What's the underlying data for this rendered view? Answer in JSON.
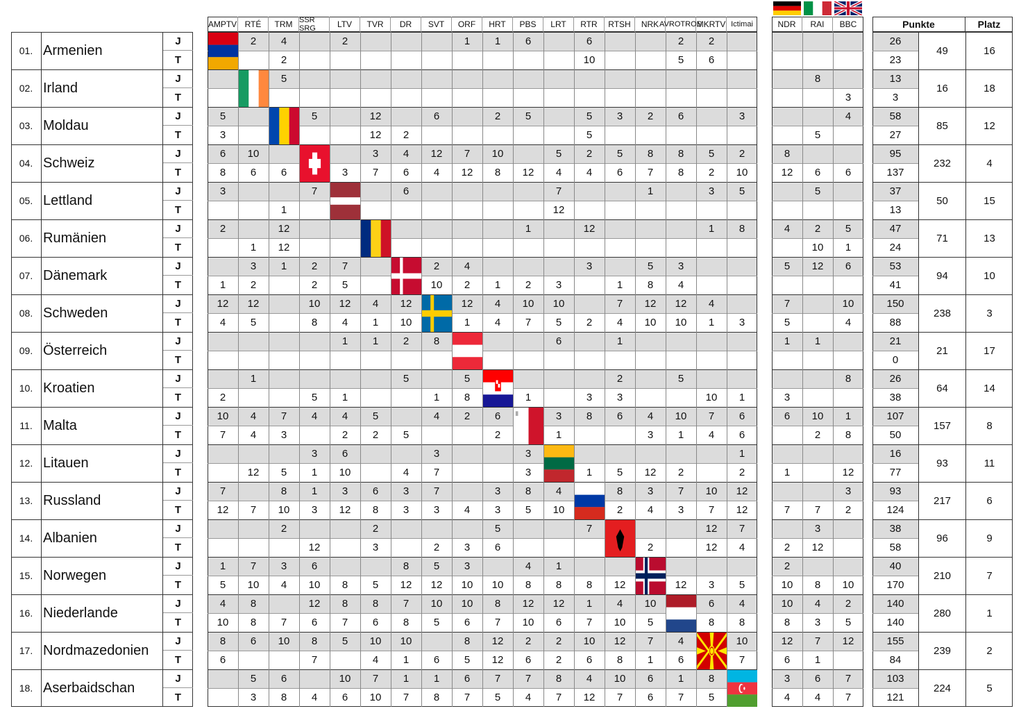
{
  "broadcasters": [
    "AMPTV",
    "RTÉ",
    "TRM",
    "SSR SRG",
    "LTV",
    "TVR",
    "DR",
    "SVT",
    "ORF",
    "HRT",
    "PBS",
    "LRT",
    "RTR",
    "RTSH",
    "NRK",
    "AVROTROS",
    "MKRTV",
    "Ictimai"
  ],
  "special_broadcasters": [
    "NDR",
    "RAI",
    "BBC"
  ],
  "special_flags": [
    "germany-flag-icon",
    "italy-flag-icon",
    "uk-flag-icon"
  ],
  "summary_headers": {
    "punkte": "Punkte",
    "platz": "Platz"
  },
  "colors": {
    "grey_row": "#dcdcdc",
    "border": "#333333"
  },
  "countries": [
    {
      "num": "01.",
      "name": "Armenien",
      "flag": "armenia-flag-icon",
      "j_label": "J",
      "t_label": "T",
      "j": [
        "",
        "2",
        "4",
        "",
        "2",
        "",
        "",
        "",
        "1",
        "1",
        "6",
        "",
        "6",
        "",
        "",
        "2",
        "2",
        ""
      ],
      "t": [
        "",
        "",
        "2",
        "",
        "",
        "",
        "",
        "",
        "",
        "",
        "",
        "",
        "10",
        "",
        "",
        "5",
        "6",
        ""
      ],
      "j_special": [
        "",
        "",
        ""
      ],
      "t_special": [
        "",
        "",
        ""
      ],
      "j_sum": "26",
      "t_sum": "23",
      "punkte": "49",
      "platz": "16"
    },
    {
      "num": "02.",
      "name": "Irland",
      "flag": "ireland-flag-icon",
      "j_label": "J",
      "t_label": "T",
      "j": [
        "",
        "",
        "5",
        "",
        "",
        "",
        "",
        "",
        "",
        "",
        "",
        "",
        "",
        "",
        "",
        "",
        "",
        ""
      ],
      "t": [
        "",
        "",
        "",
        "",
        "",
        "",
        "",
        "",
        "",
        "",
        "",
        "",
        "",
        "",
        "",
        "",
        "",
        ""
      ],
      "j_special": [
        "",
        "8",
        ""
      ],
      "t_special": [
        "",
        "",
        "3"
      ],
      "j_sum": "13",
      "t_sum": "3",
      "punkte": "16",
      "platz": "18"
    },
    {
      "num": "03.",
      "name": "Moldau",
      "flag": "moldova-flag-icon",
      "j_label": "J",
      "t_label": "T",
      "j": [
        "5",
        "",
        "",
        "5",
        "",
        "12",
        "",
        "6",
        "",
        "2",
        "5",
        "",
        "5",
        "3",
        "2",
        "6",
        "",
        "3"
      ],
      "t": [
        "3",
        "",
        "",
        "",
        "",
        "12",
        "2",
        "",
        "",
        "",
        "",
        "",
        "5",
        "",
        "",
        "",
        "",
        ""
      ],
      "j_special": [
        "",
        "",
        "4"
      ],
      "t_special": [
        "",
        "5",
        ""
      ],
      "j_sum": "58",
      "t_sum": "27",
      "punkte": "85",
      "platz": "12"
    },
    {
      "num": "04.",
      "name": "Schweiz",
      "flag": "switzerland-flag-icon",
      "j_label": "J",
      "t_label": "T",
      "j": [
        "6",
        "10",
        "",
        "",
        "",
        "3",
        "4",
        "12",
        "7",
        "10",
        "",
        "5",
        "2",
        "5",
        "8",
        "8",
        "5",
        "2"
      ],
      "t": [
        "8",
        "6",
        "6",
        "",
        "3",
        "7",
        "6",
        "4",
        "12",
        "8",
        "12",
        "4",
        "4",
        "6",
        "7",
        "8",
        "2",
        "10"
      ],
      "j_special": [
        "8",
        "",
        ""
      ],
      "t_special": [
        "12",
        "6",
        "6"
      ],
      "j_sum": "95",
      "t_sum": "137",
      "punkte": "232",
      "platz": "4"
    },
    {
      "num": "05.",
      "name": "Lettland",
      "flag": "latvia-flag-icon",
      "j_label": "J",
      "t_label": "T",
      "j": [
        "3",
        "",
        "",
        "7",
        "",
        "",
        "6",
        "",
        "",
        "",
        "",
        "7",
        "",
        "",
        "1",
        "",
        "3",
        "5"
      ],
      "t": [
        "",
        "",
        "1",
        "",
        "",
        "",
        "",
        "",
        "",
        "",
        "",
        "12",
        "",
        "",
        "",
        "",
        "",
        ""
      ],
      "j_special": [
        "",
        "5",
        ""
      ],
      "t_special": [
        "",
        "",
        ""
      ],
      "j_sum": "37",
      "t_sum": "13",
      "punkte": "50",
      "platz": "15"
    },
    {
      "num": "06.",
      "name": "Rumänien",
      "flag": "romania-flag-icon",
      "j_label": "J",
      "t_label": "T",
      "j": [
        "2",
        "",
        "12",
        "",
        "",
        "",
        "",
        "",
        "",
        "",
        "1",
        "",
        "12",
        "",
        "",
        "",
        "1",
        "8"
      ],
      "t": [
        "",
        "1",
        "12",
        "",
        "",
        "",
        "",
        "",
        "",
        "",
        "",
        "",
        "",
        "",
        "",
        "",
        "",
        ""
      ],
      "j_special": [
        "4",
        "2",
        "5"
      ],
      "t_special": [
        "",
        "10",
        "1"
      ],
      "j_sum": "47",
      "t_sum": "24",
      "punkte": "71",
      "platz": "13"
    },
    {
      "num": "07.",
      "name": "Dänemark",
      "flag": "denmark-flag-icon",
      "j_label": "J",
      "t_label": "T",
      "j": [
        "",
        "3",
        "1",
        "2",
        "7",
        "",
        "",
        "2",
        "4",
        "",
        "",
        "",
        "3",
        "",
        "5",
        "3",
        "",
        ""
      ],
      "t": [
        "1",
        "2",
        "",
        "2",
        "5",
        "",
        "",
        "10",
        "2",
        "1",
        "2",
        "3",
        "",
        "1",
        "8",
        "4",
        "",
        ""
      ],
      "j_special": [
        "5",
        "12",
        "6"
      ],
      "t_special": [
        "",
        "",
        ""
      ],
      "j_sum": "53",
      "t_sum": "41",
      "punkte": "94",
      "platz": "10"
    },
    {
      "num": "08.",
      "name": "Schweden",
      "flag": "sweden-flag-icon",
      "j_label": "J",
      "t_label": "T",
      "j": [
        "12",
        "12",
        "",
        "10",
        "12",
        "4",
        "12",
        "",
        "12",
        "4",
        "10",
        "10",
        "",
        "7",
        "12",
        "12",
        "4",
        ""
      ],
      "t": [
        "4",
        "5",
        "",
        "8",
        "4",
        "1",
        "10",
        "",
        "1",
        "4",
        "7",
        "5",
        "2",
        "4",
        "10",
        "10",
        "1",
        "3"
      ],
      "j_special": [
        "7",
        "",
        "10"
      ],
      "t_special": [
        "5",
        "",
        "4"
      ],
      "j_sum": "150",
      "t_sum": "88",
      "punkte": "238",
      "platz": "3"
    },
    {
      "num": "09.",
      "name": "Österreich",
      "flag": "austria-flag-icon",
      "j_label": "J",
      "t_label": "T",
      "j": [
        "",
        "",
        "",
        "",
        "1",
        "1",
        "2",
        "8",
        "",
        "",
        "",
        "6",
        "",
        "1",
        "",
        "",
        "",
        ""
      ],
      "t": [
        "",
        "",
        "",
        "",
        "",
        "",
        "",
        "",
        "",
        "",
        "",
        "",
        "",
        "",
        "",
        "",
        "",
        ""
      ],
      "j_special": [
        "1",
        "1",
        ""
      ],
      "t_special": [
        "",
        "",
        ""
      ],
      "j_sum": "21",
      "t_sum": "0",
      "punkte": "21",
      "platz": "17"
    },
    {
      "num": "10.",
      "name": "Kroatien",
      "flag": "croatia-flag-icon",
      "j_label": "J",
      "t_label": "T",
      "j": [
        "",
        "1",
        "",
        "",
        "",
        "",
        "5",
        "",
        "5",
        "",
        "",
        "",
        "",
        "2",
        "",
        "5",
        "",
        ""
      ],
      "t": [
        "2",
        "",
        "",
        "5",
        "1",
        "",
        "",
        "1",
        "8",
        "",
        "1",
        "",
        "3",
        "3",
        "",
        "",
        "10",
        "1"
      ],
      "j_special": [
        "",
        "",
        "8"
      ],
      "t_special": [
        "3",
        "",
        ""
      ],
      "j_sum": "26",
      "t_sum": "38",
      "punkte": "64",
      "platz": "14"
    },
    {
      "num": "11.",
      "name": "Malta",
      "flag": "malta-flag-icon",
      "j_label": "J",
      "t_label": "T",
      "j": [
        "10",
        "4",
        "7",
        "4",
        "4",
        "5",
        "",
        "4",
        "2",
        "6",
        "",
        "3",
        "8",
        "6",
        "4",
        "10",
        "7",
        "6"
      ],
      "t": [
        "7",
        "4",
        "3",
        "",
        "2",
        "2",
        "5",
        "",
        "",
        "2",
        "",
        "1",
        "",
        "",
        "3",
        "1",
        "4",
        "6"
      ],
      "j_special": [
        "6",
        "10",
        "1"
      ],
      "t_special": [
        "",
        "2",
        "8"
      ],
      "j_sum": "107",
      "t_sum": "50",
      "punkte": "157",
      "platz": "8"
    },
    {
      "num": "12.",
      "name": "Litauen",
      "flag": "lithuania-flag-icon",
      "j_label": "J",
      "t_label": "T",
      "j": [
        "",
        "",
        "",
        "3",
        "6",
        "",
        "",
        "3",
        "",
        "",
        "3",
        "",
        "",
        "",
        "",
        "",
        "",
        "1"
      ],
      "t": [
        "",
        "12",
        "5",
        "1",
        "10",
        "",
        "4",
        "7",
        "",
        "",
        "3",
        "",
        "1",
        "5",
        "12",
        "2",
        "",
        "2"
      ],
      "j_special": [
        "",
        "",
        ""
      ],
      "t_special": [
        "1",
        "",
        "12"
      ],
      "j_sum": "16",
      "t_sum": "77",
      "punkte": "93",
      "platz": "11"
    },
    {
      "num": "13.",
      "name": "Russland",
      "flag": "russia-flag-icon",
      "j_label": "J",
      "t_label": "T",
      "j": [
        "7",
        "",
        "8",
        "1",
        "3",
        "6",
        "3",
        "7",
        "",
        "3",
        "8",
        "4",
        "",
        "8",
        "3",
        "7",
        "10",
        "12"
      ],
      "t": [
        "12",
        "7",
        "10",
        "3",
        "12",
        "8",
        "3",
        "3",
        "4",
        "3",
        "5",
        "10",
        "",
        "2",
        "4",
        "3",
        "7",
        "12"
      ],
      "j_special": [
        "",
        "",
        "3"
      ],
      "t_special": [
        "7",
        "7",
        "2"
      ],
      "j_sum": "93",
      "t_sum": "124",
      "punkte": "217",
      "platz": "6"
    },
    {
      "num": "14.",
      "name": "Albanien",
      "flag": "albania-flag-icon",
      "j_label": "J",
      "t_label": "T",
      "j": [
        "",
        "",
        "2",
        "",
        "",
        "2",
        "",
        "",
        "",
        "5",
        "",
        "",
        "7",
        "",
        "",
        "",
        "12",
        "7"
      ],
      "t": [
        "",
        "",
        "",
        "12",
        "",
        "3",
        "",
        "2",
        "3",
        "6",
        "",
        "",
        "",
        "",
        "2",
        "",
        "12",
        "4"
      ],
      "j_special": [
        "",
        "3",
        ""
      ],
      "t_special": [
        "2",
        "12",
        ""
      ],
      "j_sum": "38",
      "t_sum": "58",
      "punkte": "96",
      "platz": "9"
    },
    {
      "num": "15.",
      "name": "Norwegen",
      "flag": "norway-flag-icon",
      "j_label": "J",
      "t_label": "T",
      "j": [
        "1",
        "7",
        "3",
        "6",
        "",
        "",
        "8",
        "5",
        "3",
        "",
        "4",
        "1",
        "",
        "",
        "",
        "",
        "",
        ""
      ],
      "t": [
        "5",
        "10",
        "4",
        "10",
        "8",
        "5",
        "12",
        "12",
        "10",
        "10",
        "8",
        "8",
        "8",
        "12",
        "",
        "12",
        "3",
        "5"
      ],
      "j_special": [
        "2",
        "",
        ""
      ],
      "t_special": [
        "10",
        "8",
        "10"
      ],
      "j_sum": "40",
      "t_sum": "170",
      "punkte": "210",
      "platz": "7"
    },
    {
      "num": "16.",
      "name": "Niederlande",
      "flag": "netherlands-flag-icon",
      "j_label": "J",
      "t_label": "T",
      "j": [
        "4",
        "8",
        "",
        "12",
        "8",
        "8",
        "7",
        "10",
        "10",
        "8",
        "12",
        "12",
        "1",
        "4",
        "10",
        "",
        "6",
        "4"
      ],
      "t": [
        "10",
        "8",
        "7",
        "6",
        "7",
        "6",
        "8",
        "5",
        "6",
        "7",
        "10",
        "6",
        "7",
        "10",
        "5",
        "",
        "8",
        "8"
      ],
      "j_special": [
        "10",
        "4",
        "2"
      ],
      "t_special": [
        "8",
        "3",
        "5"
      ],
      "j_sum": "140",
      "t_sum": "140",
      "punkte": "280",
      "platz": "1"
    },
    {
      "num": "17.",
      "name": "Nordmazedonien",
      "flag": "north-macedonia-flag-icon",
      "j_label": "J",
      "t_label": "T",
      "j": [
        "8",
        "6",
        "10",
        "8",
        "5",
        "10",
        "10",
        "",
        "8",
        "12",
        "2",
        "2",
        "10",
        "12",
        "7",
        "4",
        "",
        "10"
      ],
      "t": [
        "6",
        "",
        "",
        "7",
        "",
        "4",
        "1",
        "6",
        "5",
        "12",
        "6",
        "2",
        "6",
        "8",
        "1",
        "6",
        "",
        "7"
      ],
      "j_special": [
        "12",
        "7",
        "12"
      ],
      "t_special": [
        "6",
        "1",
        ""
      ],
      "j_sum": "155",
      "t_sum": "84",
      "punkte": "239",
      "platz": "2"
    },
    {
      "num": "18.",
      "name": "Aserbaidschan",
      "flag": "azerbaijan-flag-icon",
      "j_label": "J",
      "t_label": "T",
      "j": [
        "",
        "5",
        "6",
        "",
        "10",
        "7",
        "1",
        "1",
        "6",
        "7",
        "7",
        "8",
        "4",
        "10",
        "6",
        "1",
        "8",
        ""
      ],
      "t": [
        "",
        "3",
        "8",
        "4",
        "6",
        "10",
        "7",
        "8",
        "7",
        "5",
        "4",
        "7",
        "12",
        "7",
        "6",
        "7",
        "5",
        ""
      ],
      "j_special": [
        "3",
        "6",
        "7"
      ],
      "t_special": [
        "4",
        "4",
        "7"
      ],
      "j_sum": "103",
      "t_sum": "121",
      "punkte": "224",
      "platz": "5"
    }
  ]
}
